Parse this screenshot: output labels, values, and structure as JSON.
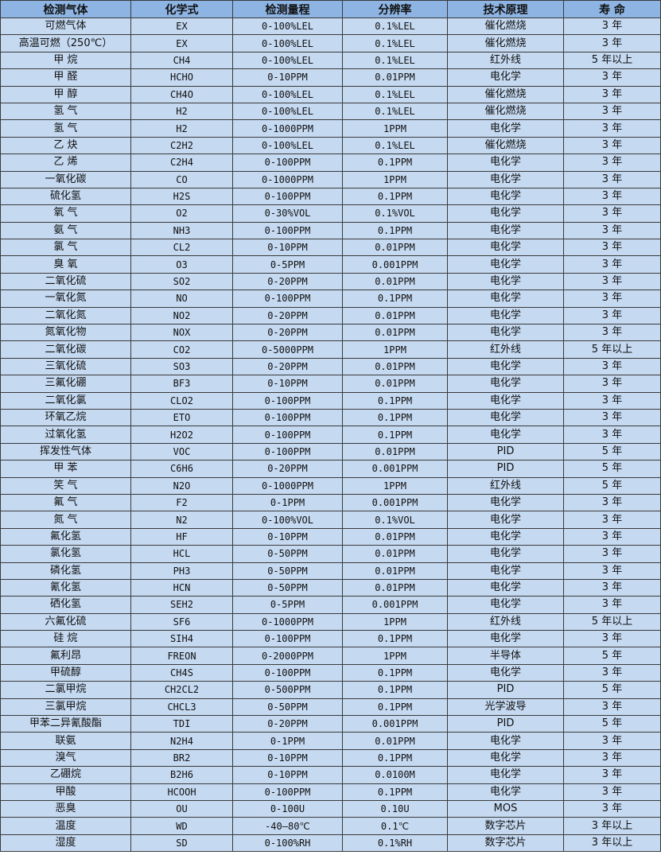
{
  "table": {
    "headers": [
      "检测气体",
      "化学式",
      "检测量程",
      "分辨率",
      "技术原理",
      "寿 命"
    ],
    "rows": [
      [
        "可燃气体",
        "EX",
        "0-100%LEL",
        "0.1%LEL",
        "催化燃烧",
        "3 年"
      ],
      [
        "高温可燃（250℃）",
        "EX",
        "0-100%LEL",
        "0.1%LEL",
        "催化燃烧",
        "3 年"
      ],
      [
        "甲 烷",
        "CH4",
        "0-100%LEL",
        "0.1%LEL",
        "红外线",
        "5 年以上"
      ],
      [
        "甲 醛",
        "HCHO",
        "0-10PPM",
        "0.01PPM",
        "电化学",
        "3 年"
      ],
      [
        "甲 醇",
        "CH4O",
        "0-100%LEL",
        "0.1%LEL",
        "催化燃烧",
        "3 年"
      ],
      [
        "氢 气",
        "H2",
        "0-100%LEL",
        "0.1%LEL",
        "催化燃烧",
        "3 年"
      ],
      [
        "氢 气",
        "H2",
        "0-1000PPM",
        "1PPM",
        "电化学",
        "3 年"
      ],
      [
        "乙 炔",
        "C2H2",
        "0-100%LEL",
        "0.1%LEL",
        "催化燃烧",
        "3 年"
      ],
      [
        "乙 烯",
        "C2H4",
        "0-100PPM",
        "0.1PPM",
        "电化学",
        "3 年"
      ],
      [
        "一氧化碳",
        "CO",
        "0-1000PPM",
        "1PPM",
        "电化学",
        "3 年"
      ],
      [
        "硫化氢",
        "H2S",
        "0-100PPM",
        "0.1PPM",
        "电化学",
        "3 年"
      ],
      [
        "氧 气",
        "O2",
        "0-30%VOL",
        "0.1%VOL",
        "电化学",
        "3 年"
      ],
      [
        "氨 气",
        "NH3",
        "0-100PPM",
        "0.1PPM",
        "电化学",
        "3 年"
      ],
      [
        "氯 气",
        "CL2",
        "0-10PPM",
        "0.01PPM",
        "电化学",
        "3 年"
      ],
      [
        "臭 氧",
        "O3",
        "0-5PPM",
        "0.001PPM",
        "电化学",
        "3 年"
      ],
      [
        "二氧化硫",
        "SO2",
        "0-20PPM",
        "0.01PPM",
        "电化学",
        "3 年"
      ],
      [
        "一氧化氮",
        "NO",
        "0-100PPM",
        "0.1PPM",
        "电化学",
        "3 年"
      ],
      [
        "二氧化氮",
        "NO2",
        "0-20PPM",
        "0.01PPM",
        "电化学",
        "3 年"
      ],
      [
        "氮氧化物",
        "NOX",
        "0-20PPM",
        "0.01PPM",
        "电化学",
        "3 年"
      ],
      [
        "二氧化碳",
        "CO2",
        "0-5000PPM",
        "1PPM",
        "红外线",
        "5 年以上"
      ],
      [
        "三氧化硫",
        "SO3",
        "0-20PPM",
        "0.01PPM",
        "电化学",
        "3 年"
      ],
      [
        "三氟化硼",
        "BF3",
        "0-10PPM",
        "0.01PPM",
        "电化学",
        "3 年"
      ],
      [
        "二氧化氯",
        "CLO2",
        "0-100PPM",
        "0.1PPM",
        "电化学",
        "3 年"
      ],
      [
        "环氧乙烷",
        "ETO",
        "0-100PPM",
        "0.1PPM",
        "电化学",
        "3 年"
      ],
      [
        "过氧化氢",
        "H2O2",
        "0-100PPM",
        "0.1PPM",
        "电化学",
        "3 年"
      ],
      [
        "挥发性气体",
        "VOC",
        "0-100PPM",
        "0.01PPM",
        "PID",
        "5 年"
      ],
      [
        "甲 苯",
        "C6H6",
        "0-20PPM",
        "0.001PPM",
        "PID",
        "5 年"
      ],
      [
        "笑 气",
        "N2O",
        "0-1000PPM",
        "1PPM",
        "红外线",
        "5 年"
      ],
      [
        "氟 气",
        "F2",
        "0-1PPM",
        "0.001PPM",
        "电化学",
        "3 年"
      ],
      [
        "氮 气",
        "N2",
        "0-100%VOL",
        "0.1%VOL",
        "电化学",
        "3 年"
      ],
      [
        "氟化氢",
        "HF",
        "0-10PPM",
        "0.01PPM",
        "电化学",
        "3 年"
      ],
      [
        "氯化氢",
        "HCL",
        "0-50PPM",
        "0.01PPM",
        "电化学",
        "3 年"
      ],
      [
        "磷化氢",
        "PH3",
        "0-50PPM",
        "0.01PPM",
        "电化学",
        "3 年"
      ],
      [
        "氰化氢",
        "HCN",
        "0-50PPM",
        "0.01PPM",
        "电化学",
        "3 年"
      ],
      [
        "硒化氢",
        "SEH2",
        "0-5PPM",
        "0.001PPM",
        "电化学",
        "3 年"
      ],
      [
        "六氟化硫",
        "SF6",
        "0-1000PPM",
        "1PPM",
        "红外线",
        "5 年以上"
      ],
      [
        "硅 烷",
        "SIH4",
        "0-100PPM",
        "0.1PPM",
        "电化学",
        "3 年"
      ],
      [
        "氟利昂",
        "FREON",
        "0-2000PPM",
        "1PPM",
        "半导体",
        "5 年"
      ],
      [
        "甲硫醇",
        "CH4S",
        "0-100PPM",
        "0.1PPM",
        "电化学",
        "3 年"
      ],
      [
        "二氯甲烷",
        "CH2CL2",
        "0-500PPM",
        "0.1PPM",
        "PID",
        "5 年"
      ],
      [
        "三氯甲烷",
        "CHCL3",
        "0-50PPM",
        "0.1PPM",
        "光学波导",
        "3 年"
      ],
      [
        "甲苯二异氰酸酯",
        "TDI",
        "0-20PPM",
        "0.001PPM",
        "PID",
        "5 年"
      ],
      [
        "联氨",
        "N2H4",
        "0-1PPM",
        "0.01PPM",
        "电化学",
        "3 年"
      ],
      [
        "溴气",
        "BR2",
        "0-10PPM",
        "0.1PPM",
        "电化学",
        "3 年"
      ],
      [
        "乙硼烷",
        "B2H6",
        "0-10PPM",
        "0.0100M",
        "电化学",
        "3 年"
      ],
      [
        "甲酸",
        "HCOOH",
        "0-100PPM",
        "0.1PPM",
        "电化学",
        "3 年"
      ],
      [
        "恶臭",
        "OU",
        "0-100U",
        "0.10U",
        "MOS",
        "3 年"
      ],
      [
        "温度",
        "WD",
        "-40—80℃",
        "0.1℃",
        "数字芯片",
        "3 年以上"
      ],
      [
        "湿度",
        "SD",
        "0-100%RH",
        "0.1%RH",
        "数字芯片",
        "3 年以上"
      ]
    ]
  },
  "colors": {
    "header_bg": "#8db4e2",
    "cell_bg": "#c5d9f1",
    "border": "#3a3a3a"
  }
}
